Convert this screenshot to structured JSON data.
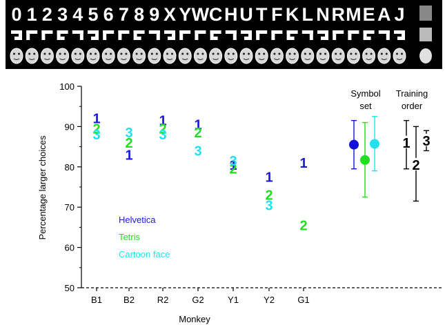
{
  "top_strip": {
    "symbols": [
      "0",
      "1",
      "2",
      "3",
      "4",
      "5",
      "6",
      "7",
      "8",
      "9",
      "X",
      "Y",
      "W",
      "C",
      "H",
      "U",
      "T",
      "F",
      "K",
      "L",
      "N",
      "R",
      "M",
      "E",
      "A",
      "J"
    ],
    "row_labels": [
      "Helvetica",
      "Tetris",
      "Cartoon face"
    ]
  },
  "chart_data": {
    "type": "scatter",
    "xlabel": "Monkey",
    "ylabel": "Percentage larger choices",
    "categories": [
      "B1",
      "B2",
      "R2",
      "G2",
      "Y1",
      "Y2",
      "G1"
    ],
    "ylim": [
      50,
      100
    ],
    "yticks": [
      50,
      60,
      70,
      80,
      90,
      100
    ],
    "chance_line": 50,
    "series": [
      {
        "name": "Helvetica",
        "marker": "1",
        "color": "#1a1adb",
        "values": [
          92,
          83,
          91.5,
          90.5,
          80.5,
          77.5,
          81
        ]
      },
      {
        "name": "Tetris",
        "marker": "2",
        "color": "#22dd22",
        "values": [
          89.5,
          86,
          89.5,
          88.5,
          79.5,
          73,
          65.5
        ]
      },
      {
        "name": "Cartoon face",
        "marker": "3",
        "color": "#22e0ee",
        "values": [
          88,
          88.5,
          88,
          84,
          81.5,
          70.5,
          null
        ]
      }
    ],
    "summary_panels": [
      {
        "title_lines": [
          "Symbol",
          "set"
        ],
        "points": [
          {
            "name": "Helvetica",
            "mean": 85.5,
            "low": 79.5,
            "high": 91.5,
            "color": "#1010d8"
          },
          {
            "name": "Tetris",
            "mean": 81.7,
            "low": 72.5,
            "high": 91,
            "color": "#22dd22"
          },
          {
            "name": "Cartoon face",
            "mean": 85.7,
            "low": 79,
            "high": 92.5,
            "color": "#22e0ee"
          }
        ]
      },
      {
        "title_lines": [
          "Training",
          "order"
        ],
        "points": [
          {
            "label": "1",
            "mean": 86,
            "low": 79.5,
            "high": 91.5
          },
          {
            "label": "2",
            "mean": 80.5,
            "low": 71.5,
            "high": 90
          },
          {
            "label": "3",
            "mean": 86.5,
            "low": 84,
            "high": 89
          }
        ]
      }
    ]
  }
}
